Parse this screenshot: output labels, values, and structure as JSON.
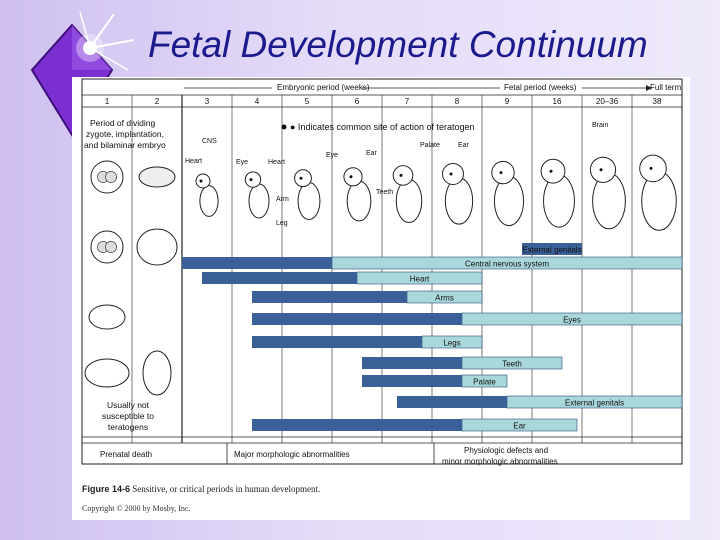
{
  "slide": {
    "title": "Fetal Development Continuum"
  },
  "colors": {
    "critical": "#3b5f97",
    "less_sensitive": "#a9d7dc",
    "title": "#1a1a8c"
  },
  "figure": {
    "header": {
      "embryonic": "Embryonic period (weeks)",
      "fetal": "Fetal period (weeks)",
      "full_term": "Full term"
    },
    "weeks": [
      "1",
      "2",
      "3",
      "4",
      "5",
      "6",
      "7",
      "8",
      "9",
      "16",
      "20–36",
      "38"
    ],
    "left_notes": {
      "period_l1": "Period of dividing",
      "period_l2": "zygote, implantation,",
      "period_l3": "and bilaminar embryo",
      "usually_l1": "Usually not",
      "usually_l2": "susceptible to",
      "usually_l3": "teratogens"
    },
    "legend_note": "● Indicates common site of action of teratogen",
    "anatomy_labels": {
      "cns": "CNS",
      "heart_a": "Heart",
      "eye_a": "Eye",
      "heart_b": "Heart",
      "arm": "Arm",
      "leg": "Leg",
      "eye_b": "Eye",
      "ear_a": "Ear",
      "teeth": "Teeth",
      "palate": "Palate",
      "ear_b": "Ear",
      "brain": "Brain"
    },
    "bars": [
      {
        "label": "External genitals",
        "crit_start": 8.8,
        "crit_end": 10.0
      },
      {
        "label": "Central nervous system",
        "crit_start": 2.0,
        "crit_end": 5.0,
        "less_end": 12.0
      },
      {
        "label": "Heart",
        "crit_start": 2.4,
        "crit_end": 5.5,
        "less_end": 8.0
      },
      {
        "label": "Arms",
        "crit_start": 3.4,
        "crit_end": 6.5,
        "less_end": 8.0
      },
      {
        "label": "Eyes",
        "crit_start": 3.4,
        "crit_end": 7.6,
        "less_end": 12.0
      },
      {
        "label": "Legs",
        "crit_start": 3.4,
        "crit_end": 6.8,
        "less_end": 8.0
      },
      {
        "label": "Teeth",
        "crit_start": 5.6,
        "crit_end": 7.6,
        "less_end": 9.6
      },
      {
        "label": "Palate",
        "crit_start": 5.6,
        "crit_end": 7.6,
        "less_end": 8.5
      },
      {
        "label": "External genitals",
        "crit_start": 6.3,
        "crit_end": 8.5,
        "less_end": 12.0
      },
      {
        "label": "Ear",
        "crit_start": 3.4,
        "crit_end": 7.6,
        "less_end": 9.9
      }
    ],
    "bottom": {
      "prenatal_death": "Prenatal death",
      "major_abn": "Major morphologic abnormalities",
      "physio_l1": "Physiologic defects and",
      "physio_l2": "minor morphologic abnormalities"
    },
    "caption_label": "Figure 14-6",
    "caption_text": "Sensitive, or critical periods in human development.",
    "copyright": "Copyright © 2000 by Mosby, Inc."
  }
}
